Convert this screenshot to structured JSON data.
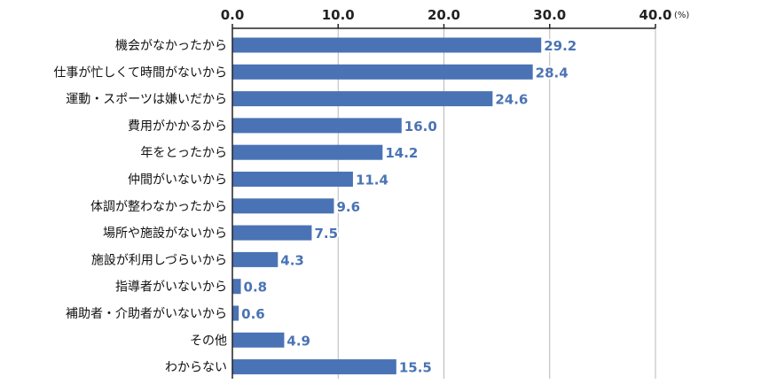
{
  "chart_data": {
    "type": "bar",
    "orientation": "horizontal",
    "categories": [
      "機会がなかったから",
      "仕事が忙しくて時間がないから",
      "運動・スポーツは嫌いだから",
      "費用がかかるから",
      "年をとったから",
      "仲間がいないから",
      "体調が整わなかったから",
      "場所や施設がないから",
      "施設が利用しづらいから",
      "指導者がいないから",
      "補助者・介助者がいないから",
      "その他",
      "わからない"
    ],
    "values": [
      29.2,
      28.4,
      24.6,
      16.0,
      14.2,
      11.4,
      9.6,
      7.5,
      4.3,
      0.8,
      0.6,
      4.9,
      15.5
    ],
    "value_labels": [
      "29.2",
      "28.4",
      "24.6",
      "16.0",
      "14.2",
      "11.4",
      "9.6",
      "7.5",
      "4.3",
      "0.8",
      "0.6",
      "4.9",
      "15.5"
    ],
    "x_ticks": [
      "0.0",
      "10.0",
      "20.0",
      "30.0",
      "40.0"
    ],
    "unit": "(%)",
    "xlim": [
      0,
      40
    ],
    "title": "",
    "xlabel": "",
    "ylabel": "",
    "grid": true,
    "axis_position": "top",
    "bar_color": "#4a73b5",
    "grid_color": "#b8b8b8",
    "axis_color": "#222222"
  }
}
